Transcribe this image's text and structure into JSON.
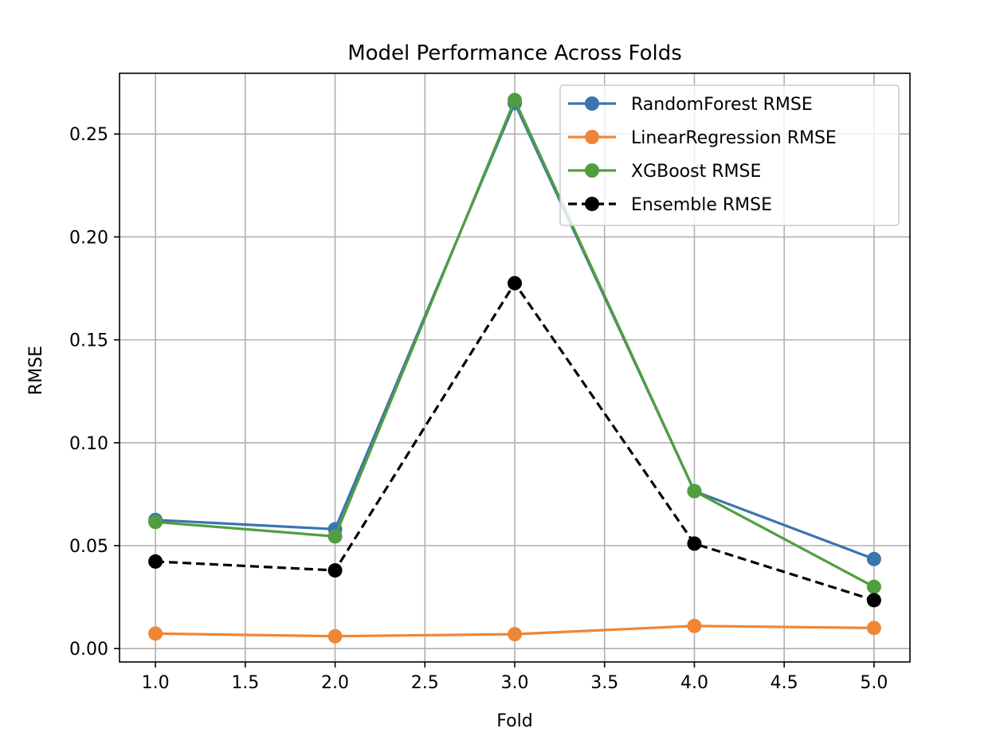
{
  "chart_data": {
    "type": "line",
    "title": "Model Performance Across Folds",
    "xlabel": "Fold",
    "ylabel": "RMSE",
    "x": [
      1.0,
      2.0,
      3.0,
      4.0,
      5.0
    ],
    "xlim": [
      0.8,
      5.2
    ],
    "ylim": [
      -0.0065,
      0.2795
    ],
    "xticks": [
      1.0,
      1.5,
      2.0,
      2.5,
      3.0,
      3.5,
      4.0,
      4.5,
      5.0
    ],
    "xtick_labels": [
      "1.0",
      "1.5",
      "2.0",
      "2.5",
      "3.0",
      "3.5",
      "4.0",
      "4.5",
      "5.0"
    ],
    "yticks": [
      0.0,
      0.05,
      0.1,
      0.15,
      0.2,
      0.25
    ],
    "ytick_labels": [
      "0.00",
      "0.05",
      "0.10",
      "0.15",
      "0.20",
      "0.25"
    ],
    "grid": true,
    "legend_position": "upper right",
    "series": [
      {
        "name": "RandomForest RMSE",
        "values": [
          0.0625,
          0.058,
          0.265,
          0.0765,
          0.0435
        ],
        "color": "#3a75af",
        "dashed": false
      },
      {
        "name": "LinearRegression RMSE",
        "values": [
          0.0073,
          0.006,
          0.007,
          0.011,
          0.01
        ],
        "color": "#ef8636",
        "dashed": false
      },
      {
        "name": "XGBoost RMSE",
        "values": [
          0.0615,
          0.0545,
          0.2665,
          0.0765,
          0.03
        ],
        "color": "#519e3e",
        "dashed": false
      },
      {
        "name": "Ensemble RMSE",
        "values": [
          0.0423,
          0.038,
          0.1775,
          0.051,
          0.0235
        ],
        "color": "#000000",
        "dashed": true
      }
    ]
  }
}
